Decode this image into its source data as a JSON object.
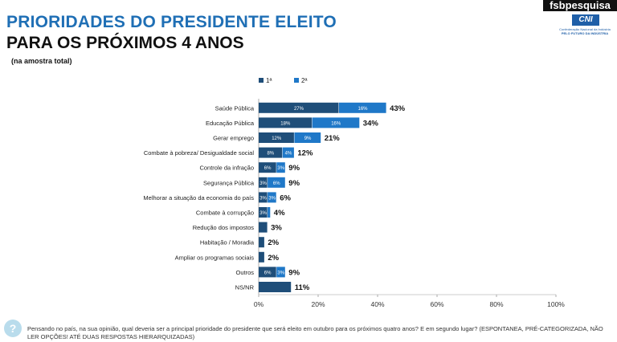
{
  "header": {
    "title_line1": "PRIORIDADES DO PRESIDENTE ELEITO",
    "title_line2": "PARA OS PRÓXIMOS 4 ANOS",
    "subtitle": "(na amostra total)"
  },
  "brand": {
    "fsb": "fsbpesquisa",
    "cni": "CNI",
    "cni_line1": "Confederação Nacional da Indústria",
    "cni_line2": "PELO FUTURO DA INDÚSTRIA"
  },
  "footer": {
    "icon": "?",
    "question": "Pensando no país, na sua opinião, qual deveria ser a principal prioridade do presidente que será eleito em outubro para os próximos quatro anos? E em segundo lugar? (ESPONTANEA, PRÉ-CATEGORIZADA, NÃO LER OPÇÕES! ATÉ DUAS RESPOSTAS HIERARQUIZADAS)"
  },
  "colors": {
    "first": "#1f4e79",
    "second": "#1f78c8"
  },
  "chart_data": {
    "type": "bar",
    "orientation": "horizontal",
    "stacked": true,
    "xlim": [
      0,
      100
    ],
    "x_ticks": [
      "0%",
      "20%",
      "40%",
      "60%",
      "80%",
      "100%"
    ],
    "legend": [
      "1ª",
      "2ª"
    ],
    "categories": [
      "Saúde Pública",
      "Educação Pública",
      "Gerar emprego",
      "Combate à pobreza/ Desigualdade social",
      "Controle da infração",
      "Segurança Pública",
      "Melhorar a situação da economia do país",
      "Combate à corrupção",
      "Redução dos impostos",
      "Habitação / Moradia",
      "Ampliar os programas sociais",
      "Outros",
      "NS/NR"
    ],
    "series": [
      {
        "name": "1ª",
        "values": [
          27,
          18,
          12,
          8,
          6,
          3,
          3,
          3,
          3,
          2,
          2,
          6,
          11
        ],
        "labels": [
          "27%",
          "18%",
          "12%",
          "8%",
          "6%",
          "3%",
          "3%",
          "3%",
          "",
          "",
          "",
          "6%",
          ""
        ]
      },
      {
        "name": "2ª",
        "values": [
          16,
          16,
          9,
          4,
          3,
          6,
          3,
          1,
          0,
          0,
          0,
          3,
          0
        ],
        "labels": [
          "16%",
          "16%",
          "9%",
          "4%",
          "3%",
          "6%",
          "3%",
          "",
          "",
          "",
          "",
          "3%",
          ""
        ]
      }
    ],
    "totals": [
      "43%",
      "34%",
      "21%",
      "12%",
      "9%",
      "9%",
      "6%",
      "4%",
      "3%",
      "2%",
      "2%",
      "9%",
      "11%"
    ]
  }
}
